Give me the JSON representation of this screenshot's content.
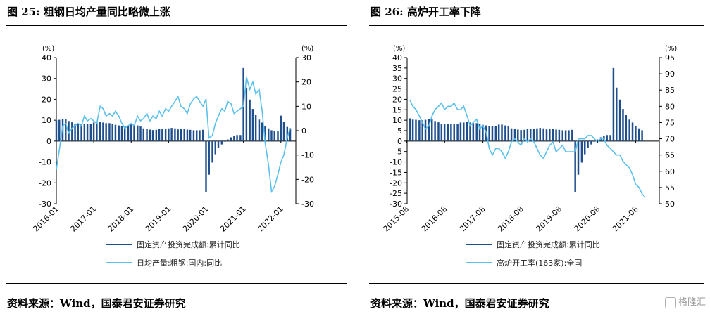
{
  "figures": [
    {
      "title": "图 25: 粗钢日均产量同比略微上涨",
      "source": "资料来源：Wind，国泰君安证券研究"
    },
    {
      "title": "图 26: 高炉开工率下降",
      "source": "资料来源：Wind，国泰君安证券研究"
    }
  ],
  "watermark": "格隆汇",
  "colors": {
    "bar": "#1f4e8c",
    "line": "#5bc0eb",
    "axis": "#000000"
  },
  "chart_data": [
    {
      "type": "bar",
      "title": "",
      "left_unit": "(%)",
      "right_unit": "(%)",
      "x_tick_labels": [
        "2016-01",
        "2017-01",
        "2018-01",
        "2019-01",
        "2020-01",
        "2021-01",
        "2022-01"
      ],
      "left_axis": {
        "ticks": [
          40,
          30,
          20,
          10,
          0,
          -10,
          -20,
          -30
        ],
        "ylim": [
          -30,
          40
        ]
      },
      "right_axis": {
        "ticks": [
          30,
          20,
          10,
          0,
          -10,
          -20,
          -30
        ],
        "ylim": [
          -30,
          30
        ]
      },
      "x_range": [
        2016.0,
        2022.4
      ],
      "legend_position": "bottom",
      "series": [
        {
          "name": "固定资产投资完成额:累计同比",
          "kind": "bar",
          "axis": "left",
          "x": [
            2016.0,
            2016.08,
            2016.17,
            2016.25,
            2016.33,
            2016.42,
            2016.5,
            2016.58,
            2016.67,
            2016.75,
            2016.83,
            2016.92,
            2017.0,
            2017.08,
            2017.17,
            2017.25,
            2017.33,
            2017.42,
            2017.5,
            2017.58,
            2017.67,
            2017.75,
            2017.83,
            2017.92,
            2018.0,
            2018.08,
            2018.17,
            2018.25,
            2018.33,
            2018.42,
            2018.5,
            2018.58,
            2018.67,
            2018.75,
            2018.83,
            2018.92,
            2019.0,
            2019.08,
            2019.17,
            2019.25,
            2019.33,
            2019.42,
            2019.5,
            2019.58,
            2019.67,
            2019.75,
            2019.83,
            2019.92,
            2020.0,
            2020.08,
            2020.17,
            2020.25,
            2020.33,
            2020.42,
            2020.5,
            2020.58,
            2020.67,
            2020.75,
            2020.83,
            2020.92,
            2021.0,
            2021.08,
            2021.17,
            2021.25,
            2021.33,
            2021.42,
            2021.5,
            2021.58,
            2021.67,
            2021.75,
            2021.83,
            2021.92,
            2022.0,
            2022.08,
            2022.17,
            2022.25
          ],
          "values": [
            10,
            10.2,
            10.7,
            10.5,
            9.6,
            9,
            8.1,
            8.1,
            8.2,
            8.3,
            8.3,
            8.1,
            8.9,
            8.9,
            9.2,
            8.9,
            8.6,
            8.6,
            8.3,
            7.8,
            7.5,
            7.3,
            7.2,
            7.2,
            7.9,
            7.9,
            7.5,
            7,
            6.1,
            6,
            5.5,
            5.3,
            5.4,
            5.7,
            5.9,
            5.9,
            6.1,
            6.3,
            6.1,
            5.6,
            5.8,
            5.7,
            5.5,
            5.4,
            5.2,
            5.2,
            5.2,
            5.4,
            -24.5,
            -16.1,
            -10.3,
            -6.3,
            -3.1,
            -1.6,
            -0.3,
            0.8,
            1.8,
            2.6,
            2.9,
            2.9,
            35,
            25.6,
            19.9,
            15.4,
            12.6,
            10.3,
            8.9,
            7.3,
            6.1,
            5.2,
            4.9,
            4.9,
            12.2,
            9.3,
            6.8,
            6.2
          ]
        },
        {
          "name": "日均产量:粗钢:国内:同比",
          "kind": "line",
          "axis": "right",
          "x": [
            2016.0,
            2016.08,
            2016.17,
            2016.25,
            2016.33,
            2016.42,
            2016.5,
            2016.58,
            2016.67,
            2016.75,
            2016.83,
            2016.92,
            2017.0,
            2017.08,
            2017.17,
            2017.25,
            2017.33,
            2017.42,
            2017.5,
            2017.58,
            2017.67,
            2017.75,
            2017.83,
            2017.92,
            2018.0,
            2018.08,
            2018.17,
            2018.25,
            2018.33,
            2018.42,
            2018.5,
            2018.58,
            2018.67,
            2018.75,
            2018.83,
            2018.92,
            2019.0,
            2019.08,
            2019.17,
            2019.25,
            2019.33,
            2019.42,
            2019.5,
            2019.58,
            2019.67,
            2019.75,
            2019.83,
            2019.92,
            2020.0,
            2020.08,
            2020.17,
            2020.25,
            2020.33,
            2020.42,
            2020.5,
            2020.58,
            2020.67,
            2020.75,
            2020.83,
            2020.92,
            2021.0,
            2021.08,
            2021.17,
            2021.25,
            2021.33,
            2021.42,
            2021.5,
            2021.58,
            2021.67,
            2021.75,
            2021.83,
            2021.92,
            2022.0,
            2022.08,
            2022.17,
            2022.25
          ],
          "values": [
            -16,
            -8,
            2,
            3,
            -1,
            1,
            2,
            3,
            2,
            6,
            4,
            5,
            4,
            3,
            10,
            9,
            6,
            7,
            6,
            8,
            6,
            3,
            1,
            2,
            3,
            2,
            6,
            4,
            5,
            7,
            4,
            6,
            5,
            8,
            6,
            9,
            8,
            10,
            12,
            14,
            10,
            9,
            7,
            11,
            13,
            14,
            12,
            10,
            13,
            -3,
            -2,
            3,
            6,
            9,
            8,
            12,
            11,
            7,
            8,
            9,
            10,
            22,
            17,
            20,
            15,
            17,
            8,
            -5,
            -14,
            -25,
            -23,
            -18,
            -13,
            -10,
            -3,
            1
          ]
        }
      ]
    },
    {
      "type": "bar",
      "title": "",
      "left_unit": "(%)",
      "right_unit": "(%)",
      "x_tick_labels": [
        "2015-08",
        "2016-08",
        "2017-08",
        "2018-08",
        "2019-08",
        "2020-08",
        "2021-08"
      ],
      "left_axis": {
        "ticks": [
          40,
          35,
          30,
          25,
          20,
          15,
          10,
          5,
          0,
          -5,
          -10,
          -15,
          -20,
          -25,
          -30
        ],
        "ylim": [
          -30,
          40
        ]
      },
      "right_axis": {
        "ticks": [
          95,
          90,
          85,
          80,
          75,
          70,
          65,
          60,
          55,
          50
        ],
        "ylim": [
          50,
          95
        ]
      },
      "x_range": [
        2015.6,
        2022.2
      ],
      "legend_position": "bottom",
      "series": [
        {
          "name": "固定资产投资完成额:累计同比",
          "kind": "bar",
          "axis": "left",
          "x": [
            2015.67,
            2015.75,
            2015.83,
            2015.92,
            2016.0,
            2016.08,
            2016.17,
            2016.25,
            2016.33,
            2016.42,
            2016.5,
            2016.58,
            2016.67,
            2016.75,
            2016.83,
            2016.92,
            2017.0,
            2017.08,
            2017.17,
            2017.25,
            2017.33,
            2017.42,
            2017.5,
            2017.58,
            2017.67,
            2017.75,
            2017.83,
            2017.92,
            2018.0,
            2018.08,
            2018.17,
            2018.25,
            2018.33,
            2018.42,
            2018.5,
            2018.58,
            2018.67,
            2018.75,
            2018.83,
            2018.92,
            2019.0,
            2019.08,
            2019.17,
            2019.25,
            2019.33,
            2019.42,
            2019.5,
            2019.58,
            2019.67,
            2019.75,
            2019.83,
            2019.92,
            2020.0,
            2020.08,
            2020.17,
            2020.25,
            2020.33,
            2020.42,
            2020.5,
            2020.58,
            2020.67,
            2020.75,
            2020.83,
            2020.92,
            2021.0,
            2021.08,
            2021.17,
            2021.25,
            2021.33,
            2021.42,
            2021.5,
            2021.58,
            2021.67,
            2021.75
          ],
          "values": [
            10.9,
            10.3,
            10.2,
            10,
            10,
            10.2,
            10.7,
            10.5,
            9.6,
            9,
            8.1,
            8.1,
            8.2,
            8.3,
            8.3,
            8.1,
            8.9,
            8.9,
            9.2,
            8.9,
            8.6,
            8.6,
            8.3,
            7.8,
            7.5,
            7.3,
            7.2,
            7.2,
            7.9,
            7.9,
            7.5,
            7,
            6.1,
            6,
            5.5,
            5.3,
            5.4,
            5.7,
            5.9,
            5.9,
            6.1,
            6.3,
            6.1,
            5.6,
            5.8,
            5.7,
            5.5,
            5.4,
            5.2,
            5.2,
            5.2,
            5.4,
            -24.5,
            -16.1,
            -10.3,
            -6.3,
            -3.1,
            -1.6,
            -0.3,
            0.8,
            1.8,
            2.6,
            2.9,
            2.9,
            35,
            25.6,
            19.9,
            15.4,
            12.6,
            10.3,
            8.9,
            7.3,
            6.1,
            5.2
          ]
        },
        {
          "name": "高炉开工率(163家):全国",
          "kind": "line",
          "axis": "right",
          "x": [
            2015.67,
            2015.75,
            2015.83,
            2015.92,
            2016.0,
            2016.08,
            2016.17,
            2016.25,
            2016.33,
            2016.42,
            2016.5,
            2016.58,
            2016.67,
            2016.75,
            2016.83,
            2016.92,
            2017.0,
            2017.08,
            2017.17,
            2017.25,
            2017.33,
            2017.42,
            2017.5,
            2017.58,
            2017.67,
            2017.75,
            2017.83,
            2017.92,
            2018.0,
            2018.08,
            2018.17,
            2018.25,
            2018.33,
            2018.42,
            2018.5,
            2018.58,
            2018.67,
            2018.75,
            2018.83,
            2018.92,
            2019.0,
            2019.08,
            2019.17,
            2019.25,
            2019.33,
            2019.42,
            2019.5,
            2019.58,
            2019.67,
            2019.75,
            2019.83,
            2019.92,
            2020.0,
            2020.08,
            2020.17,
            2020.25,
            2020.33,
            2020.42,
            2020.5,
            2020.58,
            2020.67,
            2020.75,
            2020.83,
            2020.92,
            2021.0,
            2021.08,
            2021.17,
            2021.25,
            2021.33,
            2021.42,
            2021.5,
            2021.58,
            2021.67,
            2021.75,
            2021.83
          ],
          "values": [
            82,
            80,
            79,
            77,
            75,
            73,
            74,
            77,
            79,
            80,
            81,
            79,
            80,
            80,
            81,
            79,
            79,
            80,
            77,
            74,
            75,
            76,
            73,
            74,
            72,
            67,
            65,
            67,
            67,
            66,
            64,
            66,
            69,
            70,
            69,
            68,
            70,
            69,
            70,
            69,
            67,
            65,
            64,
            66,
            68,
            69,
            66,
            67,
            68,
            66,
            66,
            66,
            66,
            70,
            70,
            70,
            71,
            71,
            70,
            69,
            70,
            70,
            68,
            67,
            66,
            65,
            65,
            63,
            62,
            61,
            59,
            56,
            55,
            53,
            52
          ]
        }
      ]
    }
  ]
}
